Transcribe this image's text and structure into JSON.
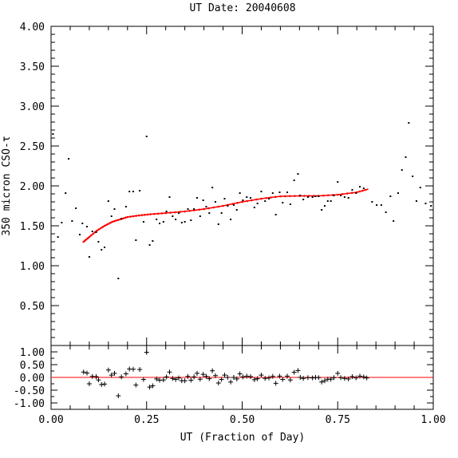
{
  "chart_data": [
    {
      "type": "scatter",
      "title": "UT Date: 20040608",
      "ylabel": "350 micron CSO-τ",
      "xlim": [
        0.0,
        1.0
      ],
      "ylim": [
        0.0,
        4.0
      ],
      "yticks": [
        "0.50",
        "1.00",
        "1.50",
        "2.00",
        "2.50",
        "3.00",
        "3.50",
        "4.00"
      ],
      "series": [
        {
          "kind": "points",
          "color": "#000000",
          "points": [
            [
              0.005,
              2.65
            ],
            [
              0.018,
              1.36
            ],
            [
              0.028,
              1.54
            ],
            [
              0.038,
              1.91
            ],
            [
              0.046,
              2.34
            ],
            [
              0.055,
              1.56
            ],
            [
              0.065,
              1.72
            ],
            [
              0.075,
              1.39
            ],
            [
              0.082,
              1.53
            ],
            [
              0.094,
              1.49
            ],
            [
              0.1,
              1.11
            ],
            [
              0.108,
              1.43
            ],
            [
              0.118,
              1.42
            ],
            [
              0.124,
              1.3
            ],
            [
              0.132,
              1.2
            ],
            [
              0.14,
              1.23
            ],
            [
              0.15,
              1.81
            ],
            [
              0.158,
              1.62
            ],
            [
              0.166,
              1.71
            ],
            [
              0.176,
              0.84
            ],
            [
              0.184,
              1.59
            ],
            [
              0.196,
              1.74
            ],
            [
              0.205,
              1.93
            ],
            [
              0.215,
              1.93
            ],
            [
              0.222,
              1.32
            ],
            [
              0.232,
              1.94
            ],
            [
              0.242,
              1.55
            ],
            [
              0.25,
              2.62
            ],
            [
              0.258,
              1.26
            ],
            [
              0.266,
              1.31
            ],
            [
              0.276,
              1.58
            ],
            [
              0.284,
              1.53
            ],
            [
              0.294,
              1.55
            ],
            [
              0.302,
              1.68
            ],
            [
              0.31,
              1.86
            ],
            [
              0.318,
              1.62
            ],
            [
              0.326,
              1.58
            ],
            [
              0.334,
              1.66
            ],
            [
              0.342,
              1.54
            ],
            [
              0.35,
              1.55
            ],
            [
              0.358,
              1.71
            ],
            [
              0.366,
              1.57
            ],
            [
              0.374,
              1.71
            ],
            [
              0.382,
              1.85
            ],
            [
              0.39,
              1.62
            ],
            [
              0.398,
              1.82
            ],
            [
              0.406,
              1.74
            ],
            [
              0.414,
              1.66
            ],
            [
              0.422,
              1.98
            ],
            [
              0.43,
              1.8
            ],
            [
              0.438,
              1.52
            ],
            [
              0.446,
              1.66
            ],
            [
              0.454,
              1.84
            ],
            [
              0.462,
              1.75
            ],
            [
              0.47,
              1.58
            ],
            [
              0.478,
              1.76
            ],
            [
              0.486,
              1.7
            ],
            [
              0.494,
              1.91
            ],
            [
              0.502,
              1.82
            ],
            [
              0.512,
              1.86
            ],
            [
              0.522,
              1.85
            ],
            [
              0.532,
              1.73
            ],
            [
              0.54,
              1.78
            ],
            [
              0.55,
              1.93
            ],
            [
              0.56,
              1.81
            ],
            [
              0.57,
              1.84
            ],
            [
              0.58,
              1.91
            ],
            [
              0.588,
              1.64
            ],
            [
              0.598,
              1.92
            ],
            [
              0.606,
              1.79
            ],
            [
              0.618,
              1.92
            ],
            [
              0.626,
              1.77
            ],
            [
              0.636,
              2.07
            ],
            [
              0.646,
              2.15
            ],
            [
              0.652,
              1.88
            ],
            [
              0.66,
              1.83
            ],
            [
              0.672,
              1.86
            ],
            [
              0.684,
              1.86
            ],
            [
              0.692,
              1.87
            ],
            [
              0.7,
              1.87
            ],
            [
              0.708,
              1.7
            ],
            [
              0.716,
              1.75
            ],
            [
              0.724,
              1.81
            ],
            [
              0.732,
              1.81
            ],
            [
              0.74,
              1.88
            ],
            [
              0.75,
              2.05
            ],
            [
              0.758,
              1.88
            ],
            [
              0.768,
              1.86
            ],
            [
              0.778,
              1.85
            ],
            [
              0.788,
              1.95
            ],
            [
              0.798,
              1.91
            ],
            [
              0.808,
              1.99
            ],
            [
              0.818,
              1.97
            ],
            [
              0.84,
              1.8
            ],
            [
              0.852,
              1.76
            ],
            [
              0.864,
              1.76
            ],
            [
              0.876,
              1.67
            ],
            [
              0.888,
              1.87
            ],
            [
              0.896,
              1.56
            ],
            [
              0.908,
              1.91
            ],
            [
              0.918,
              2.2
            ],
            [
              0.928,
              2.36
            ],
            [
              0.936,
              2.79
            ],
            [
              0.946,
              2.12
            ],
            [
              0.956,
              1.81
            ],
            [
              0.966,
              1.98
            ],
            [
              0.98,
              1.78
            ],
            [
              0.994,
              1.75
            ]
          ]
        },
        {
          "kind": "fit",
          "color": "#ff0000",
          "points": [
            [
              0.085,
              1.3
            ],
            [
              0.1,
              1.36
            ],
            [
              0.12,
              1.44
            ],
            [
              0.14,
              1.5
            ],
            [
              0.16,
              1.55
            ],
            [
              0.18,
              1.58
            ],
            [
              0.2,
              1.61
            ],
            [
              0.23,
              1.63
            ],
            [
              0.26,
              1.645
            ],
            [
              0.3,
              1.66
            ],
            [
              0.35,
              1.68
            ],
            [
              0.4,
              1.71
            ],
            [
              0.45,
              1.75
            ],
            [
              0.5,
              1.8
            ],
            [
              0.55,
              1.84
            ],
            [
              0.6,
              1.87
            ],
            [
              0.65,
              1.875
            ],
            [
              0.7,
              1.875
            ],
            [
              0.75,
              1.89
            ],
            [
              0.8,
              1.92
            ],
            [
              0.83,
              1.96
            ]
          ]
        }
      ]
    },
    {
      "type": "scatter",
      "xlabel": "UT (Fraction of Day)",
      "xlim": [
        0.0,
        1.0
      ],
      "ylim": [
        -1.25,
        1.25
      ],
      "xticks": [
        "0.00",
        "0.25",
        "0.50",
        "0.75",
        "1.00"
      ],
      "yticks": [
        "-1.00",
        "-0.50",
        "0.00",
        "0.50",
        "1.00"
      ],
      "series": [
        {
          "kind": "residuals",
          "color": "#000000",
          "points": [
            [
              0.085,
              0.21
            ],
            [
              0.094,
              0.17
            ],
            [
              0.1,
              -0.25
            ],
            [
              0.108,
              0.04
            ],
            [
              0.118,
              0.03
            ],
            [
              0.124,
              -0.1
            ],
            [
              0.132,
              -0.28
            ],
            [
              0.14,
              -0.26
            ],
            [
              0.15,
              0.29
            ],
            [
              0.158,
              0.09
            ],
            [
              0.166,
              0.16
            ],
            [
              0.176,
              -0.72
            ],
            [
              0.184,
              0.02
            ],
            [
              0.196,
              0.14
            ],
            [
              0.205,
              0.33
            ],
            [
              0.215,
              0.32
            ],
            [
              0.222,
              -0.3
            ],
            [
              0.232,
              0.31
            ],
            [
              0.242,
              -0.08
            ],
            [
              0.25,
              0.98
            ],
            [
              0.258,
              -0.38
            ],
            [
              0.266,
              -0.33
            ],
            [
              0.276,
              -0.06
            ],
            [
              0.284,
              -0.11
            ],
            [
              0.294,
              -0.1
            ],
            [
              0.302,
              0.02
            ],
            [
              0.31,
              0.21
            ],
            [
              0.318,
              -0.04
            ],
            [
              0.326,
              -0.08
            ],
            [
              0.334,
              -0.02
            ],
            [
              0.342,
              -0.13
            ],
            [
              0.35,
              -0.13
            ],
            [
              0.358,
              0.04
            ],
            [
              0.366,
              -0.11
            ],
            [
              0.374,
              0.02
            ],
            [
              0.382,
              0.16
            ],
            [
              0.39,
              -0.07
            ],
            [
              0.398,
              0.12
            ],
            [
              0.406,
              0.04
            ],
            [
              0.414,
              -0.05
            ],
            [
              0.422,
              0.26
            ],
            [
              0.43,
              0.07
            ],
            [
              0.438,
              -0.22
            ],
            [
              0.446,
              -0.08
            ],
            [
              0.454,
              0.09
            ],
            [
              0.462,
              0.0
            ],
            [
              0.47,
              -0.18
            ],
            [
              0.478,
              0.0
            ],
            [
              0.486,
              -0.06
            ],
            [
              0.494,
              0.14
            ],
            [
              0.502,
              0.02
            ],
            [
              0.512,
              0.05
            ],
            [
              0.522,
              0.03
            ],
            [
              0.532,
              -0.09
            ],
            [
              0.54,
              -0.05
            ],
            [
              0.55,
              0.09
            ],
            [
              0.56,
              -0.04
            ],
            [
              0.57,
              -0.02
            ],
            [
              0.58,
              0.04
            ],
            [
              0.588,
              -0.23
            ],
            [
              0.598,
              0.05
            ],
            [
              0.606,
              -0.08
            ],
            [
              0.618,
              0.05
            ],
            [
              0.626,
              -0.1
            ],
            [
              0.636,
              0.2
            ],
            [
              0.646,
              0.27
            ],
            [
              0.652,
              0.0
            ],
            [
              0.66,
              -0.04
            ],
            [
              0.672,
              -0.01
            ],
            [
              0.684,
              -0.02
            ],
            [
              0.692,
              0.0
            ],
            [
              0.7,
              -0.01
            ],
            [
              0.708,
              -0.18
            ],
            [
              0.716,
              -0.13
            ],
            [
              0.724,
              -0.07
            ],
            [
              0.732,
              -0.07
            ],
            [
              0.74,
              -0.01
            ],
            [
              0.75,
              0.16
            ],
            [
              0.758,
              -0.01
            ],
            [
              0.768,
              -0.04
            ],
            [
              0.778,
              -0.06
            ],
            [
              0.788,
              0.03
            ],
            [
              0.798,
              -0.02
            ],
            [
              0.808,
              0.05
            ],
            [
              0.818,
              0.02
            ],
            [
              0.826,
              -0.02
            ]
          ]
        },
        {
          "kind": "zero-line",
          "color": "#ff0000",
          "points": [
            [
              0.0,
              0.0
            ],
            [
              1.0,
              0.0
            ]
          ]
        }
      ]
    }
  ]
}
